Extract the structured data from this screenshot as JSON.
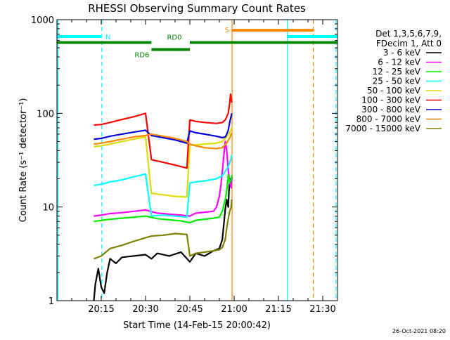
{
  "stamp": "26-Oct-2021 08:20",
  "chart_data": {
    "type": "line",
    "title": "RHESSI Observing Summary Count Rates",
    "xlabel": "Start Time (14-Feb-15 20:00:42)",
    "ylabel": "Count Rate (s⁻¹ detector⁻¹)",
    "yscale": "log",
    "xlim": [
      0,
      95
    ],
    "ylim": [
      1,
      1000
    ],
    "x_unit": "minutes after 20:00",
    "x_ticks": [
      {
        "at": 15,
        "label": "20:15"
      },
      {
        "at": 30,
        "label": "20:30"
      },
      {
        "at": 45,
        "label": "20:45"
      },
      {
        "at": 60,
        "label": "21:00"
      },
      {
        "at": 75,
        "label": "21:15"
      },
      {
        "at": 90,
        "label": "21:30"
      }
    ],
    "y_ticks": [
      {
        "at": 1,
        "label": "1"
      },
      {
        "at": 10,
        "label": "10"
      },
      {
        "at": 100,
        "label": "100"
      },
      {
        "at": 1000,
        "label": "1000"
      }
    ],
    "legend": {
      "placement": "right",
      "header": [
        "Det 1,3,5,6,7,9,",
        "FDecim 1, Att 0"
      ]
    },
    "series": [
      {
        "name": "3 - 6 keV",
        "color": "#000000",
        "x": [
          12.5,
          13,
          14,
          15,
          16,
          17,
          18,
          20,
          22,
          26,
          30,
          32,
          34,
          38,
          42,
          45,
          47,
          50,
          53,
          55,
          56,
          56.5,
          57,
          57.5,
          58,
          58.3,
          58.6,
          58.9,
          59.2
        ],
        "y": [
          1.0,
          1.5,
          2.2,
          1.4,
          1.2,
          2.0,
          2.8,
          2.5,
          2.9,
          3.0,
          3.1,
          2.8,
          3.2,
          3.0,
          3.3,
          2.6,
          3.2,
          3.0,
          3.4,
          3.6,
          4.5,
          6.5,
          9.5,
          12.0,
          10.0,
          16.0,
          20.0,
          17.0,
          21.0
        ]
      },
      {
        "name": "6 - 12 keV",
        "color": "#ff00ff",
        "x": [
          12.5,
          15,
          18,
          22,
          26,
          30,
          34,
          38,
          42,
          45,
          47,
          50,
          53,
          54,
          55,
          55.5,
          56,
          56.5,
          57,
          57.5,
          58,
          58.5,
          59,
          59.2
        ],
        "y": [
          8.0,
          8.2,
          8.5,
          8.7,
          9.0,
          9.3,
          8.6,
          8.4,
          8.2,
          8.0,
          8.6,
          8.8,
          9.0,
          10.0,
          13.0,
          17.0,
          24.0,
          35.0,
          50.0,
          40.0,
          25.0,
          18.0,
          16.0,
          20.0
        ]
      },
      {
        "name": "12 - 25 keV",
        "color": "#00ee00",
        "x": [
          12.5,
          15,
          18,
          22,
          26,
          30,
          34,
          38,
          42,
          45,
          47,
          50,
          53,
          55,
          56,
          57,
          57.5,
          58,
          58.5,
          59,
          59.2
        ],
        "y": [
          7.0,
          7.2,
          7.4,
          7.6,
          7.8,
          8.0,
          7.5,
          7.3,
          7.1,
          6.8,
          7.2,
          7.4,
          7.6,
          7.8,
          9.0,
          12.0,
          15.0,
          22.0,
          18.0,
          20.0,
          22.0
        ]
      },
      {
        "name": "25 - 50 keV",
        "color": "#00ffff",
        "x": [
          12.5,
          15,
          18,
          22,
          26,
          30,
          32,
          36,
          40,
          44,
          45,
          47,
          50,
          54,
          56,
          57,
          58,
          58.5,
          59,
          59.2
        ],
        "y": [
          17.0,
          17.5,
          18.5,
          19.5,
          21.0,
          22.5,
          8.0,
          8.2,
          8.0,
          7.8,
          18.0,
          18.5,
          19.0,
          20.0,
          21.5,
          24.0,
          27.0,
          30.0,
          33.0,
          36.0
        ]
      },
      {
        "name": "50 - 100 keV",
        "color": "#dddd00",
        "x": [
          12.5,
          15,
          18,
          22,
          26,
          30,
          32,
          36,
          40,
          44,
          45,
          47,
          50,
          54,
          56,
          57.5,
          58.5,
          59.2
        ],
        "y": [
          44.0,
          45.0,
          47.0,
          50.0,
          53.0,
          56.0,
          14.0,
          13.5,
          13.0,
          12.8,
          46.0,
          46.0,
          47.0,
          48.0,
          50.0,
          56.0,
          62.0,
          70.0
        ]
      },
      {
        "name": "100 - 300 keV",
        "color": "#ff0000",
        "x": [
          12.5,
          15,
          18,
          22,
          26,
          30,
          32,
          36,
          40,
          44,
          45,
          47,
          50,
          54,
          56,
          57,
          57.5,
          58,
          58.5,
          58.8,
          59.2
        ],
        "y": [
          75.0,
          76.0,
          80.0,
          86.0,
          92.0,
          100.0,
          32.0,
          30.0,
          28.0,
          26.0,
          85.0,
          82.0,
          80.0,
          78.0,
          80.0,
          85.0,
          92.0,
          100.0,
          130.0,
          160.0,
          130.0
        ]
      },
      {
        "name": "300 - 800 keV",
        "color": "#0000dd",
        "x": [
          12.5,
          15,
          18,
          22,
          26,
          30,
          32,
          36,
          40,
          44,
          45,
          47,
          50,
          54,
          56,
          57,
          57.5,
          58,
          58.5,
          59.2
        ],
        "y": [
          53.0,
          54.0,
          57.0,
          60.0,
          63.0,
          66.0,
          58.0,
          55.0,
          52.0,
          48.0,
          65.0,
          62.0,
          60.0,
          57.0,
          55.0,
          56.0,
          60.0,
          66.0,
          80.0,
          100.0
        ]
      },
      {
        "name": "800 - 7000 keV",
        "color": "#ff8800",
        "x": [
          12.5,
          15,
          18,
          22,
          26,
          30,
          32,
          36,
          40,
          44,
          45,
          47,
          50,
          54,
          56,
          57.5,
          58.5,
          59.2
        ],
        "y": [
          47.0,
          48.0,
          50.0,
          53.0,
          56.0,
          58.0,
          60.0,
          57.0,
          54.0,
          50.0,
          47.0,
          45.0,
          43.0,
          42.0,
          43.0,
          48.0,
          55.0,
          62.0
        ]
      },
      {
        "name": "7000 - 15000 keV",
        "color": "#808000",
        "x": [
          12.5,
          15,
          18,
          22,
          26,
          30,
          32,
          36,
          40,
          44,
          45,
          47,
          50,
          53,
          55,
          56,
          57,
          57.5,
          58,
          58.5,
          59,
          59.2
        ],
        "y": [
          2.8,
          3.0,
          3.6,
          3.9,
          4.3,
          4.7,
          4.9,
          5.0,
          5.2,
          5.1,
          3.0,
          3.2,
          3.3,
          3.4,
          3.5,
          3.7,
          4.5,
          6.0,
          7.5,
          9.0,
          10.0,
          12.0
        ]
      }
    ],
    "state_bars": [
      {
        "label": "N",
        "color": "#00ffff",
        "level": 660,
        "segments": [
          [
            0,
            15
          ],
          [
            78,
            95
          ]
        ]
      },
      {
        "label": "S",
        "color": "#ff8800",
        "level": 770,
        "segments": [
          [
            59.3,
            87
          ]
        ]
      },
      {
        "label": "RD0",
        "color": "#008800",
        "level": 570,
        "segments": [
          [
            0,
            32
          ],
          [
            45,
            95
          ]
        ]
      },
      {
        "label": "RD6",
        "color": "#008800",
        "level": 480,
        "segments": [
          [
            32,
            45
          ]
        ]
      }
    ],
    "markers": [
      {
        "x": 0.3,
        "color": "#00ffff",
        "style": "solid"
      },
      {
        "x": 15.2,
        "color": "#00ffff",
        "style": "dashed"
      },
      {
        "x": 59.3,
        "color": "#ff8800",
        "style": "solid"
      },
      {
        "x": 78,
        "color": "#00ffff",
        "style": "solid"
      },
      {
        "x": 86.8,
        "color": "#ff8800",
        "style": "dashed"
      },
      {
        "x": 94.5,
        "color": "#00ffff",
        "style": "dashed"
      }
    ]
  }
}
